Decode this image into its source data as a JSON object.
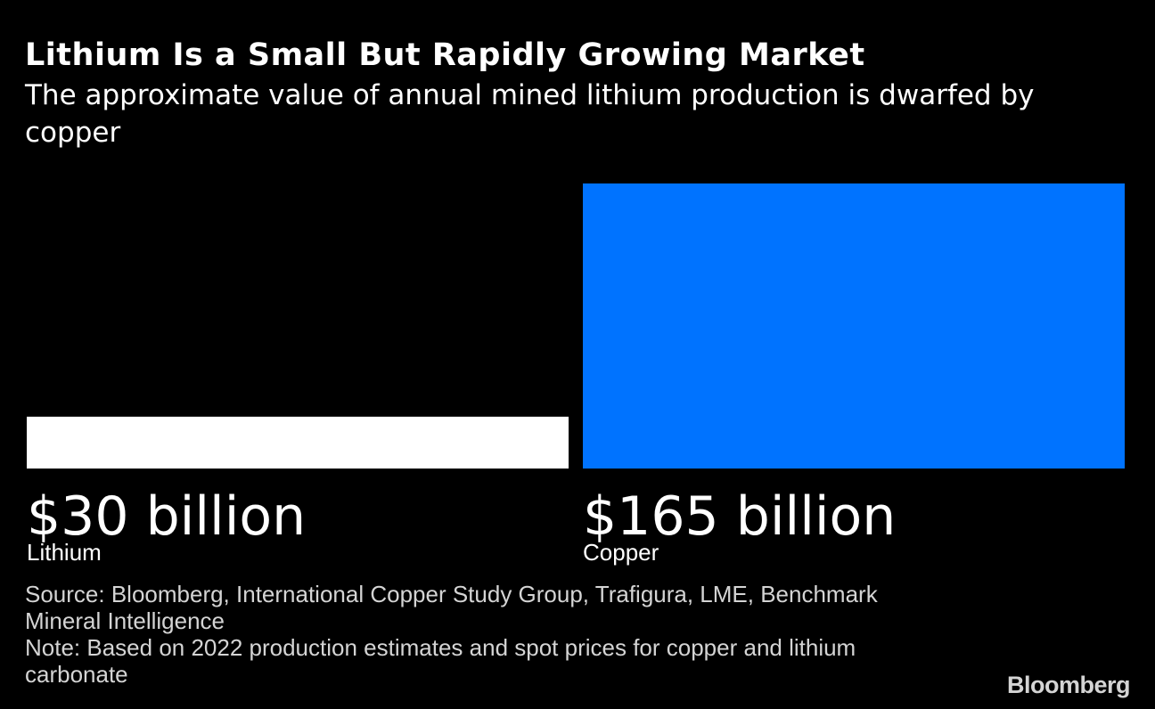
{
  "chart_data": {
    "type": "bar",
    "title": "Lithium Is a Small But Rapidly Growing Market",
    "subtitle": "The approximate value of annual mined lithium production is dwarfed by copper",
    "categories": [
      "Lithium",
      "Copper"
    ],
    "values": [
      30,
      165
    ],
    "value_labels": [
      "$30 billion",
      "$165 billion"
    ],
    "colors": [
      "#ffffff",
      "#0073ff"
    ],
    "ylim": [
      0,
      165
    ],
    "xlabel": "",
    "ylabel": ""
  },
  "footer": {
    "source": "Source: Bloomberg, International Copper Study Group, Trafigura, LME, Benchmark Mineral Intelligence",
    "note": "Note: Based on 2022 production estimates and spot prices for copper and lithium carbonate",
    "brand": "Bloomberg"
  }
}
